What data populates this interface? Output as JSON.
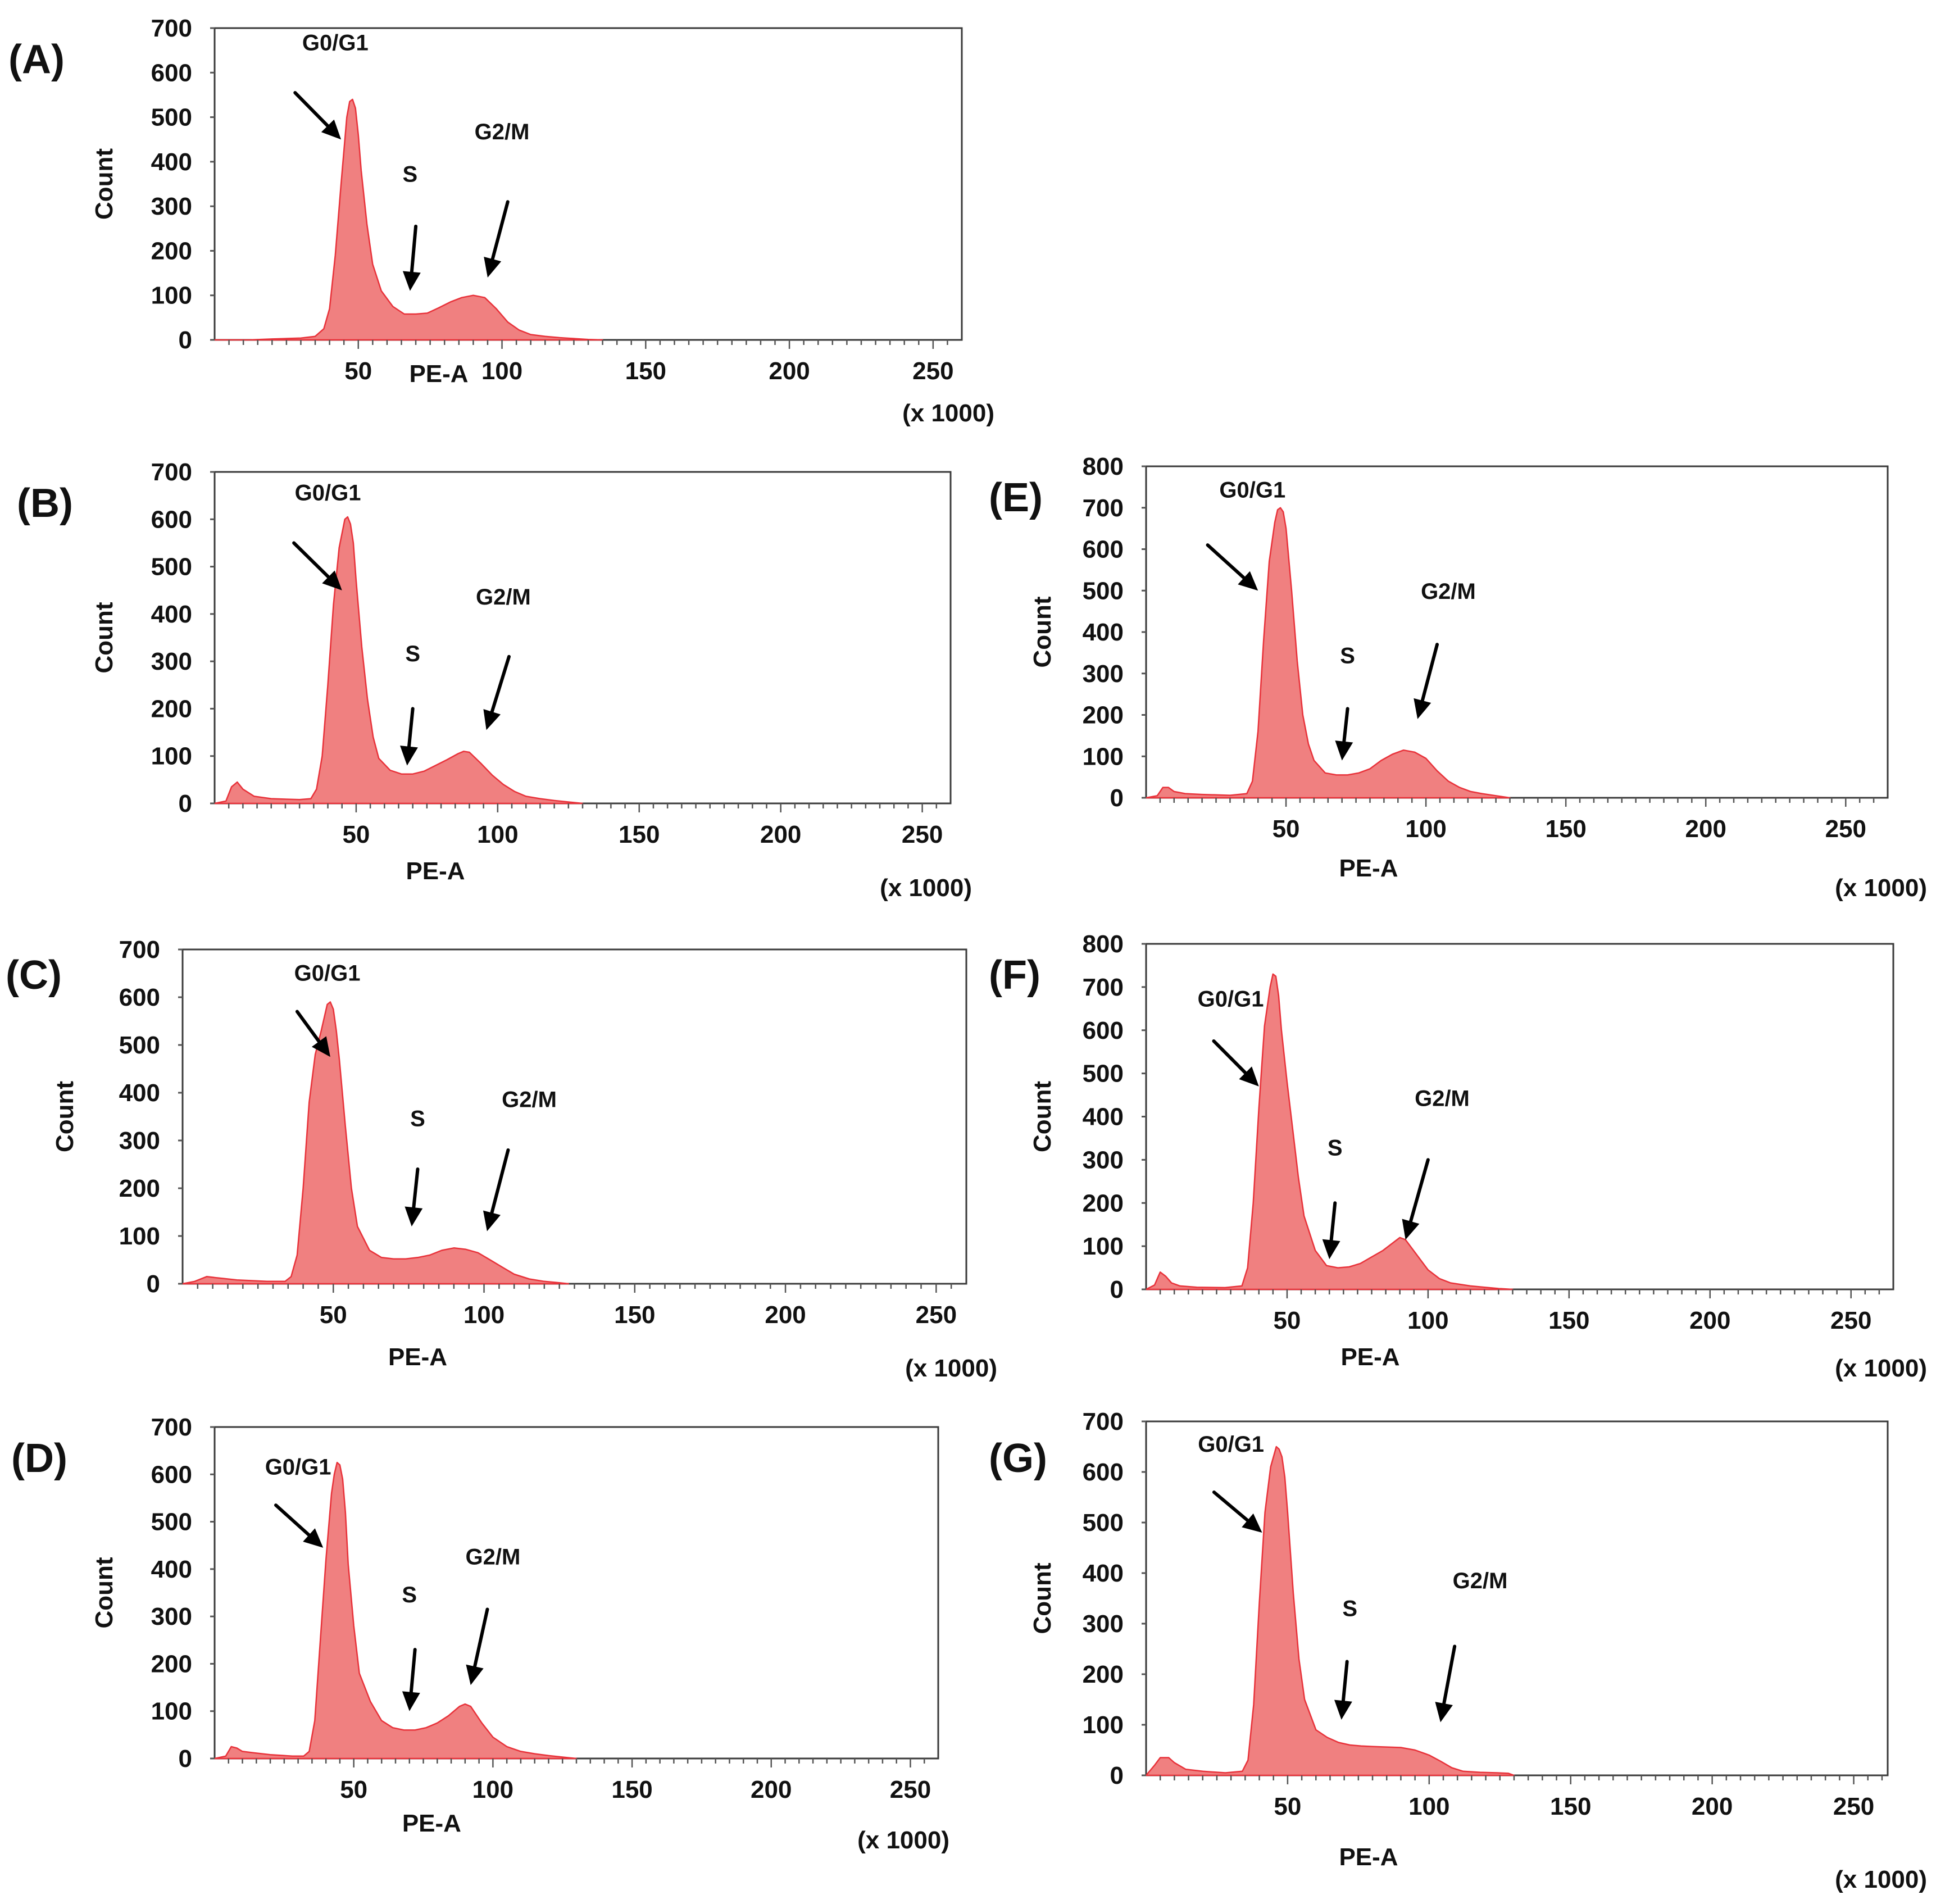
{
  "colors": {
    "fill": "#f08080",
    "stroke": "#e8323a",
    "axis": "#3a3a3a"
  },
  "chart_data": [
    {
      "panel": "(A)",
      "type": "area",
      "xlabel": "PE-A",
      "ylabel": "Count",
      "xscale_note": "(x 1000)",
      "xlim": [
        0,
        260
      ],
      "ylim": [
        0,
        700
      ],
      "xticks": [
        50,
        100,
        150,
        200,
        250
      ],
      "yticks": [
        0,
        100,
        200,
        300,
        400,
        500,
        600,
        700
      ],
      "x": [
        0,
        8,
        12,
        20,
        30,
        35,
        38,
        40,
        42,
        44,
        46,
        47,
        48,
        49,
        50,
        51,
        53,
        55,
        58,
        62,
        66,
        70,
        74,
        78,
        82,
        86,
        90,
        94,
        98,
        102,
        106,
        110,
        115,
        120,
        125,
        130,
        135
      ],
      "y": [
        0,
        0,
        0,
        2,
        4,
        8,
        25,
        70,
        190,
        350,
        500,
        535,
        540,
        520,
        460,
        380,
        260,
        170,
        110,
        75,
        58,
        58,
        60,
        72,
        85,
        95,
        100,
        95,
        70,
        40,
        22,
        12,
        8,
        5,
        3,
        1,
        0
      ],
      "annotations": [
        {
          "text": "G0/G1",
          "x": 42,
          "y": 650
        },
        {
          "text": "S",
          "x": 68,
          "y": 355
        },
        {
          "text": "G2/M",
          "x": 100,
          "y": 450
        }
      ],
      "arrows": [
        {
          "from": [
            28,
            555
          ],
          "to": [
            44,
            450
          ]
        },
        {
          "from": [
            70,
            255
          ],
          "to": [
            68,
            110
          ]
        },
        {
          "from": [
            102,
            310
          ],
          "to": [
            95,
            140
          ]
        }
      ]
    },
    {
      "panel": "(B)",
      "type": "area",
      "xlabel": "PE-A",
      "ylabel": "Count",
      "xscale_note": "(x 1000)",
      "xlim": [
        0,
        260
      ],
      "ylim": [
        0,
        700
      ],
      "xticks": [
        50,
        100,
        150,
        200,
        250
      ],
      "yticks": [
        0,
        100,
        200,
        300,
        400,
        500,
        600,
        700
      ],
      "x": [
        0,
        4,
        6,
        8,
        10,
        14,
        20,
        30,
        34,
        36,
        38,
        40,
        42,
        44,
        46,
        47,
        48,
        49,
        50,
        52,
        54,
        56,
        58,
        62,
        66,
        70,
        74,
        78,
        82,
        86,
        88,
        90,
        94,
        98,
        102,
        106,
        110,
        115,
        120,
        125,
        130
      ],
      "y": [
        0,
        5,
        35,
        45,
        30,
        15,
        10,
        8,
        10,
        30,
        100,
        250,
        420,
        540,
        600,
        605,
        590,
        550,
        470,
        330,
        220,
        140,
        95,
        70,
        62,
        62,
        68,
        80,
        92,
        105,
        110,
        108,
        85,
        60,
        40,
        25,
        15,
        10,
        6,
        3,
        0
      ],
      "annotations": [
        {
          "text": "G0/G1",
          "x": 40,
          "y": 640
        },
        {
          "text": "S",
          "x": 70,
          "y": 300
        },
        {
          "text": "G2/M",
          "x": 102,
          "y": 420
        }
      ],
      "arrows": [
        {
          "from": [
            28,
            550
          ],
          "to": [
            45,
            450
          ]
        },
        {
          "from": [
            70,
            200
          ],
          "to": [
            68,
            80
          ]
        },
        {
          "from": [
            104,
            310
          ],
          "to": [
            96,
            155
          ]
        }
      ]
    },
    {
      "panel": "(C)",
      "type": "area",
      "xlabel": "PE-A",
      "ylabel": "Count",
      "xscale_note": "(x 1000)",
      "xlim": [
        0,
        260
      ],
      "ylim": [
        0,
        700
      ],
      "xticks": [
        50,
        100,
        150,
        200,
        250
      ],
      "yticks": [
        0,
        100,
        200,
        300,
        400,
        500,
        600,
        700
      ],
      "x": [
        0,
        4,
        8,
        12,
        18,
        28,
        34,
        36,
        38,
        40,
        42,
        44,
        46,
        48,
        49,
        50,
        51,
        52,
        54,
        56,
        58,
        62,
        66,
        70,
        74,
        78,
        82,
        86,
        90,
        94,
        98,
        102,
        106,
        110,
        115,
        120,
        125,
        128
      ],
      "y": [
        0,
        5,
        15,
        12,
        8,
        5,
        5,
        15,
        60,
        200,
        380,
        480,
        530,
        585,
        590,
        575,
        530,
        470,
        330,
        200,
        120,
        70,
        55,
        52,
        52,
        55,
        60,
        70,
        75,
        72,
        65,
        50,
        35,
        20,
        10,
        5,
        2,
        0
      ],
      "annotations": [
        {
          "text": "G0/G1",
          "x": 48,
          "y": 635
        },
        {
          "text": "S",
          "x": 78,
          "y": 330
        },
        {
          "text": "G2/M",
          "x": 115,
          "y": 370
        }
      ],
      "arrows": [
        {
          "from": [
            38,
            570
          ],
          "to": [
            49,
            475
          ]
        },
        {
          "from": [
            78,
            240
          ],
          "to": [
            76,
            120
          ]
        },
        {
          "from": [
            108,
            280
          ],
          "to": [
            101,
            110
          ]
        }
      ]
    },
    {
      "panel": "(D)",
      "type": "area",
      "xlabel": "PE-A",
      "ylabel": "Count",
      "xscale_note": "(x 1000)",
      "xlim": [
        0,
        260
      ],
      "ylim": [
        0,
        700
      ],
      "xticks": [
        50,
        100,
        150,
        200,
        250
      ],
      "yticks": [
        0,
        100,
        200,
        300,
        400,
        500,
        600,
        700
      ],
      "x": [
        0,
        4,
        6,
        8,
        10,
        14,
        20,
        28,
        32,
        34,
        36,
        38,
        40,
        42,
        43,
        44,
        45,
        46,
        47,
        48,
        50,
        52,
        56,
        60,
        64,
        68,
        72,
        76,
        80,
        84,
        88,
        90,
        92,
        96,
        100,
        105,
        110,
        115,
        120,
        125,
        130
      ],
      "y": [
        0,
        5,
        25,
        22,
        15,
        12,
        8,
        5,
        5,
        15,
        80,
        250,
        420,
        560,
        600,
        625,
        620,
        590,
        520,
        410,
        280,
        180,
        120,
        80,
        65,
        60,
        60,
        65,
        75,
        90,
        110,
        115,
        110,
        75,
        45,
        25,
        15,
        10,
        6,
        3,
        0
      ],
      "annotations": [
        {
          "text": "G0/G1",
          "x": 30,
          "y": 600
        },
        {
          "text": "S",
          "x": 70,
          "y": 330
        },
        {
          "text": "G2/M",
          "x": 100,
          "y": 410
        }
      ],
      "arrows": [
        {
          "from": [
            22,
            535
          ],
          "to": [
            39,
            445
          ]
        },
        {
          "from": [
            72,
            230
          ],
          "to": [
            70,
            100
          ]
        },
        {
          "from": [
            98,
            315
          ],
          "to": [
            92,
            155
          ]
        }
      ]
    },
    {
      "panel": "(E)",
      "type": "area",
      "xlabel": "PE-A",
      "ylabel": "Count",
      "xscale_note": "(x 1000)",
      "xlim": [
        0,
        265
      ],
      "ylim": [
        0,
        800
      ],
      "xticks": [
        50,
        100,
        150,
        200,
        250
      ],
      "yticks": [
        0,
        100,
        200,
        300,
        400,
        500,
        600,
        700,
        800
      ],
      "x": [
        0,
        4,
        6,
        8,
        10,
        14,
        20,
        30,
        36,
        38,
        40,
        42,
        44,
        46,
        47,
        48,
        49,
        50,
        52,
        54,
        56,
        58,
        60,
        64,
        68,
        72,
        76,
        80,
        84,
        88,
        92,
        96,
        100,
        104,
        108,
        112,
        116,
        120,
        125,
        130
      ],
      "y": [
        0,
        5,
        25,
        25,
        15,
        10,
        8,
        6,
        10,
        40,
        160,
        380,
        570,
        665,
        695,
        700,
        690,
        650,
        500,
        330,
        200,
        130,
        90,
        60,
        55,
        55,
        60,
        70,
        90,
        105,
        115,
        110,
        95,
        65,
        40,
        25,
        15,
        10,
        5,
        0
      ],
      "annotations": [
        {
          "text": "G0/G1",
          "x": 38,
          "y": 725
        },
        {
          "text": "S",
          "x": 72,
          "y": 325
        },
        {
          "text": "G2/M",
          "x": 108,
          "y": 480
        }
      ],
      "arrows": [
        {
          "from": [
            22,
            610
          ],
          "to": [
            40,
            500
          ]
        },
        {
          "from": [
            72,
            215
          ],
          "to": [
            70,
            90
          ]
        },
        {
          "from": [
            104,
            370
          ],
          "to": [
            97,
            190
          ]
        }
      ]
    },
    {
      "panel": "(F)",
      "type": "area",
      "xlabel": "PE-A",
      "ylabel": "Count",
      "xscale_note": "(x 1000)",
      "xlim": [
        0,
        265
      ],
      "ylim": [
        0,
        800
      ],
      "xticks": [
        50,
        100,
        150,
        200,
        250
      ],
      "yticks": [
        0,
        100,
        200,
        300,
        400,
        500,
        600,
        700,
        800
      ],
      "x": [
        0,
        3,
        5,
        7,
        9,
        12,
        18,
        28,
        34,
        36,
        38,
        40,
        42,
        44,
        45,
        46,
        47,
        48,
        50,
        52,
        54,
        56,
        60,
        64,
        68,
        72,
        76,
        80,
        84,
        88,
        90,
        92,
        96,
        100,
        104,
        108,
        115,
        120,
        125,
        130
      ],
      "y": [
        0,
        10,
        40,
        30,
        15,
        8,
        5,
        4,
        8,
        50,
        200,
        420,
        610,
        700,
        730,
        725,
        680,
        600,
        480,
        370,
        260,
        170,
        90,
        55,
        50,
        52,
        60,
        75,
        90,
        110,
        120,
        115,
        80,
        45,
        25,
        15,
        8,
        5,
        2,
        0
      ],
      "annotations": [
        {
          "text": "G0/G1",
          "x": 30,
          "y": 655
        },
        {
          "text": "S",
          "x": 67,
          "y": 310
        },
        {
          "text": "G2/M",
          "x": 105,
          "y": 425
        }
      ],
      "arrows": [
        {
          "from": [
            24,
            575
          ],
          "to": [
            40,
            470
          ]
        },
        {
          "from": [
            67,
            200
          ],
          "to": [
            65,
            70
          ]
        },
        {
          "from": [
            100,
            300
          ],
          "to": [
            92,
            115
          ]
        }
      ]
    },
    {
      "panel": "(G)",
      "type": "area",
      "xlabel": "PE-A",
      "ylabel": "Count",
      "xscale_note": "(x 1000)",
      "xlim": [
        0,
        262
      ],
      "ylim": [
        0,
        700
      ],
      "xticks": [
        50,
        100,
        150,
        200,
        250
      ],
      "yticks": [
        0,
        100,
        200,
        300,
        400,
        500,
        600,
        700
      ],
      "x": [
        0,
        3,
        5,
        8,
        10,
        14,
        20,
        28,
        34,
        36,
        38,
        40,
        42,
        44,
        46,
        47,
        48,
        49,
        50,
        52,
        54,
        56,
        60,
        64,
        68,
        72,
        76,
        80,
        85,
        90,
        95,
        100,
        104,
        108,
        112,
        118,
        124,
        128,
        130
      ],
      "y": [
        0,
        20,
        35,
        35,
        25,
        12,
        8,
        5,
        8,
        30,
        140,
        340,
        520,
        610,
        650,
        645,
        630,
        590,
        520,
        360,
        230,
        150,
        90,
        75,
        65,
        60,
        58,
        57,
        56,
        55,
        50,
        40,
        28,
        15,
        8,
        6,
        5,
        4,
        0
      ],
      "annotations": [
        {
          "text": "G0/G1",
          "x": 30,
          "y": 640
        },
        {
          "text": "S",
          "x": 72,
          "y": 315
        },
        {
          "text": "G2/M",
          "x": 118,
          "y": 370
        }
      ],
      "arrows": [
        {
          "from": [
            24,
            560
          ],
          "to": [
            41,
            480
          ]
        },
        {
          "from": [
            71,
            225
          ],
          "to": [
            69,
            110
          ]
        },
        {
          "from": [
            109,
            255
          ],
          "to": [
            104,
            105
          ]
        }
      ]
    }
  ]
}
